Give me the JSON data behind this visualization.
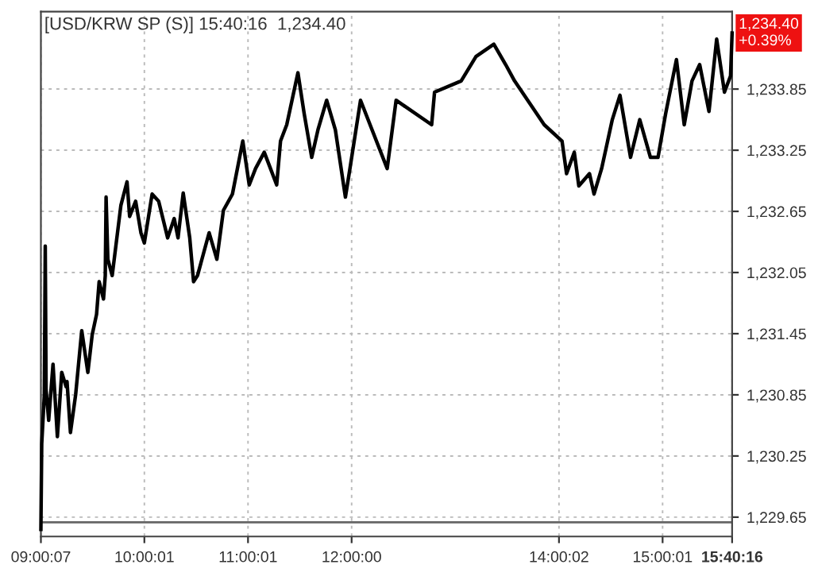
{
  "chart_data": {
    "type": "line",
    "title": "[USD/KRW SP (S)] 15:40:16  1,234.40",
    "x": [
      9.002,
      9.01,
      9.035,
      9.044,
      9.052,
      9.077,
      9.119,
      9.161,
      9.203,
      9.245,
      9.254,
      9.287,
      9.337,
      9.396,
      9.455,
      9.497,
      9.539,
      9.564,
      9.606,
      9.623,
      9.631,
      9.648,
      9.69,
      9.774,
      9.833,
      9.858,
      9.916,
      9.967,
      10.0,
      10.075,
      10.138,
      10.225,
      10.288,
      10.325,
      10.375,
      10.438,
      10.475,
      10.513,
      10.625,
      10.7,
      10.763,
      10.85,
      10.95,
      11.012,
      11.073,
      11.157,
      11.217,
      11.277,
      11.314,
      11.374,
      11.482,
      11.542,
      11.615,
      11.675,
      11.759,
      11.843,
      11.94,
      11.976,
      12.086,
      12.343,
      12.429,
      12.772,
      12.8,
      13.057,
      13.2,
      13.372,
      13.486,
      13.572,
      13.858,
      14.03,
      14.074,
      14.148,
      14.192,
      14.295,
      14.339,
      14.412,
      14.515,
      14.589,
      14.691,
      14.78,
      14.883,
      14.956,
      15.03,
      15.134,
      15.209,
      15.284,
      15.358,
      15.448,
      15.522,
      15.597,
      15.656,
      15.671
    ],
    "series": [
      {
        "color": "#000000",
        "values": [
          1229.53,
          1230.37,
          1230.85,
          1232.31,
          1230.9,
          1230.6,
          1231.15,
          1230.44,
          1231.07,
          1230.93,
          1230.98,
          1230.48,
          1230.85,
          1231.48,
          1231.07,
          1231.44,
          1231.64,
          1231.96,
          1231.79,
          1232.02,
          1232.79,
          1232.18,
          1232.02,
          1232.71,
          1232.94,
          1232.6,
          1232.75,
          1232.44,
          1232.34,
          1232.82,
          1232.75,
          1232.39,
          1232.58,
          1232.39,
          1232.83,
          1232.39,
          1231.96,
          1232.02,
          1232.44,
          1232.18,
          1232.66,
          1232.82,
          1233.34,
          1232.91,
          1233.07,
          1233.23,
          1233.07,
          1232.91,
          1233.34,
          1233.5,
          1234.01,
          1233.61,
          1233.18,
          1233.45,
          1233.74,
          1233.45,
          1232.79,
          1233.02,
          1233.74,
          1233.07,
          1233.74,
          1233.5,
          1233.82,
          1233.93,
          1234.17,
          1234.29,
          1234.09,
          1233.93,
          1233.5,
          1233.34,
          1233.02,
          1233.23,
          1232.9,
          1233.02,
          1232.82,
          1233.07,
          1233.55,
          1233.79,
          1233.18,
          1233.55,
          1233.18,
          1233.18,
          1233.61,
          1234.14,
          1233.5,
          1233.93,
          1234.09,
          1233.63,
          1234.34,
          1233.82,
          1233.98,
          1234.4
        ]
      }
    ],
    "xlim": [
      9.002,
      15.671
    ],
    "xticks": [
      {
        "value": 9.002,
        "label": "09:00:07"
      },
      {
        "value": 10.0003,
        "label": "10:00:01"
      },
      {
        "value": 11.0003,
        "label": "11:00:01"
      },
      {
        "value": 12,
        "label": "12:00:00"
      },
      {
        "value": 14.0006,
        "label": "14:00:02"
      },
      {
        "value": 15.0003,
        "label": "15:00:01"
      },
      {
        "value": 15.671,
        "label": "15:40:16"
      }
    ],
    "ylim": [
      1229.46,
      1234.61
    ],
    "yticks": [
      {
        "value": 1229.65,
        "label": "1,229.65"
      },
      {
        "value": 1230.25,
        "label": "1,230.25"
      },
      {
        "value": 1230.85,
        "label": "1,230.85"
      },
      {
        "value": 1231.45,
        "label": "1,231.45"
      },
      {
        "value": 1232.05,
        "label": "1,232.05"
      },
      {
        "value": 1232.65,
        "label": "1,232.65"
      },
      {
        "value": 1233.25,
        "label": "1,233.25"
      },
      {
        "value": 1233.85,
        "label": "1,233.85"
      }
    ],
    "ref_lines": [
      {
        "axis": "y",
        "value": 1229.6,
        "color": "#666666",
        "line_style": "solid"
      }
    ],
    "annotations": [
      {
        "text": "1,234.40\n+0.39%",
        "x": 15.671,
        "y": 1234.4
      }
    ],
    "grid": true,
    "line_style": "solid",
    "marker": "none"
  }
}
